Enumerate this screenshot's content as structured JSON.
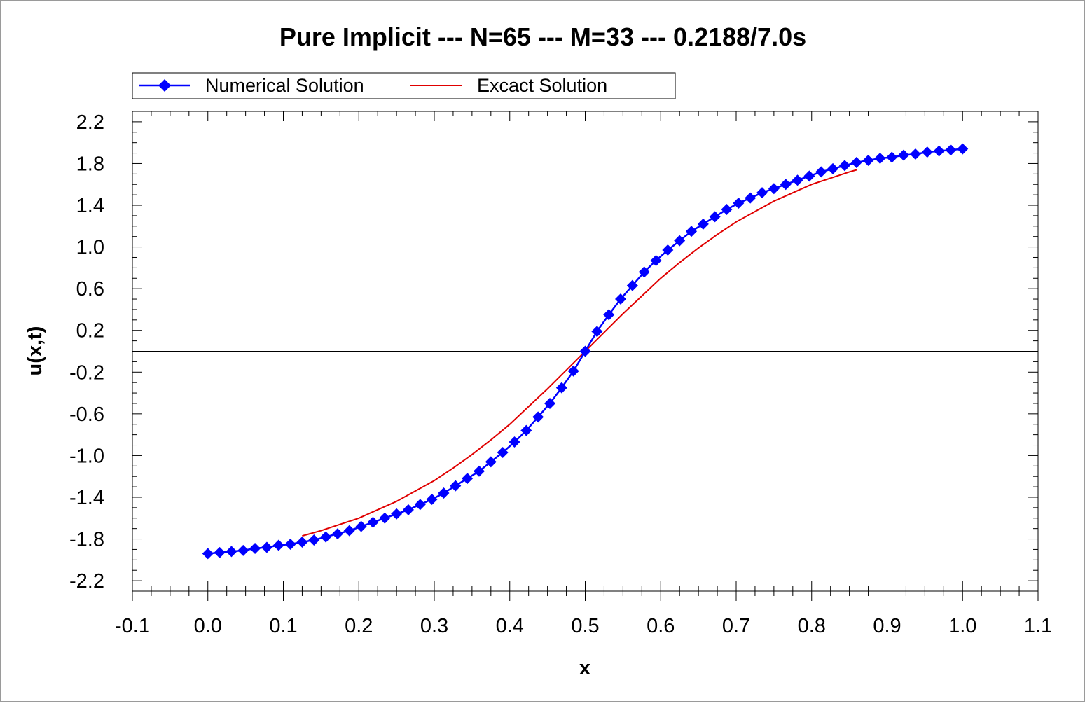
{
  "chart_data": {
    "type": "line",
    "title": "Pure Implicit --- N=65 --- M=33 --- 0.2188/7.0s",
    "xlabel": "x",
    "ylabel": "u(x,t)",
    "xlim": [
      -0.1,
      1.1
    ],
    "ylim": [
      -2.3,
      2.3
    ],
    "x_ticks": [
      -0.1,
      0.0,
      0.1,
      0.2,
      0.3,
      0.4,
      0.5,
      0.6,
      0.7,
      0.8,
      0.9,
      1.0,
      1.1
    ],
    "x_tick_labels": [
      "-0.1",
      "0.0",
      "0.1",
      "0.2",
      "0.3",
      "0.4",
      "0.5",
      "0.6",
      "0.7",
      "0.8",
      "0.9",
      "1.0",
      "1.1"
    ],
    "y_ticks": [
      2.2,
      1.8,
      1.4,
      1.0,
      0.6,
      0.2,
      -0.2,
      -0.6,
      -1.0,
      -1.4,
      -1.8,
      -2.2
    ],
    "y_tick_labels": [
      "2.2",
      "1.8",
      "1.4",
      "1.0",
      "0.6",
      "0.2",
      "-0.2",
      "-0.6",
      "-1.0",
      "-1.4",
      "-1.8",
      "-2.2"
    ],
    "grid": false,
    "zero_line": true,
    "legend_position": "top",
    "series": [
      {
        "name": "Numerical Solution",
        "color": "#0000ff",
        "marker": "diamond",
        "x": [
          0.0,
          0.015625,
          0.03125,
          0.046875,
          0.0625,
          0.078125,
          0.09375,
          0.109375,
          0.125,
          0.140625,
          0.15625,
          0.171875,
          0.1875,
          0.203125,
          0.21875,
          0.234375,
          0.25,
          0.265625,
          0.28125,
          0.296875,
          0.3125,
          0.328125,
          0.34375,
          0.359375,
          0.375,
          0.390625,
          0.40625,
          0.421875,
          0.4375,
          0.453125,
          0.46875,
          0.484375,
          0.5,
          0.515625,
          0.53125,
          0.546875,
          0.5625,
          0.578125,
          0.59375,
          0.609375,
          0.625,
          0.640625,
          0.65625,
          0.671875,
          0.6875,
          0.703125,
          0.71875,
          0.734375,
          0.75,
          0.765625,
          0.78125,
          0.796875,
          0.8125,
          0.828125,
          0.84375,
          0.859375,
          0.875,
          0.890625,
          0.90625,
          0.921875,
          0.9375,
          0.953125,
          0.96875,
          0.984375,
          1.0
        ],
        "y": [
          -1.94,
          -1.93,
          -1.92,
          -1.91,
          -1.89,
          -1.88,
          -1.86,
          -1.85,
          -1.83,
          -1.81,
          -1.78,
          -1.75,
          -1.72,
          -1.68,
          -1.64,
          -1.6,
          -1.56,
          -1.52,
          -1.47,
          -1.42,
          -1.36,
          -1.29,
          -1.22,
          -1.15,
          -1.06,
          -0.97,
          -0.87,
          -0.76,
          -0.63,
          -0.5,
          -0.35,
          -0.19,
          0.0,
          0.19,
          0.35,
          0.5,
          0.63,
          0.76,
          0.87,
          0.97,
          1.06,
          1.15,
          1.22,
          1.29,
          1.36,
          1.42,
          1.47,
          1.52,
          1.56,
          1.6,
          1.64,
          1.68,
          1.72,
          1.75,
          1.78,
          1.81,
          1.83,
          1.85,
          1.86,
          1.88,
          1.89,
          1.91,
          1.92,
          1.93,
          1.94
        ]
      },
      {
        "name": "Excact Solution",
        "color": "#e00000",
        "marker": "none",
        "x": [
          0.125,
          0.15,
          0.175,
          0.2,
          0.225,
          0.25,
          0.275,
          0.3,
          0.325,
          0.35,
          0.375,
          0.4,
          0.425,
          0.45,
          0.475,
          0.5,
          0.525,
          0.55,
          0.575,
          0.6,
          0.625,
          0.65,
          0.675,
          0.7,
          0.725,
          0.75,
          0.775,
          0.8,
          0.825,
          0.85,
          0.86
        ],
        "y": [
          -1.77,
          -1.72,
          -1.66,
          -1.6,
          -1.52,
          -1.44,
          -1.34,
          -1.24,
          -1.12,
          -0.99,
          -0.85,
          -0.7,
          -0.53,
          -0.36,
          -0.18,
          0.0,
          0.18,
          0.36,
          0.53,
          0.7,
          0.85,
          0.99,
          1.12,
          1.24,
          1.34,
          1.44,
          1.52,
          1.6,
          1.66,
          1.72,
          1.74
        ]
      }
    ]
  }
}
